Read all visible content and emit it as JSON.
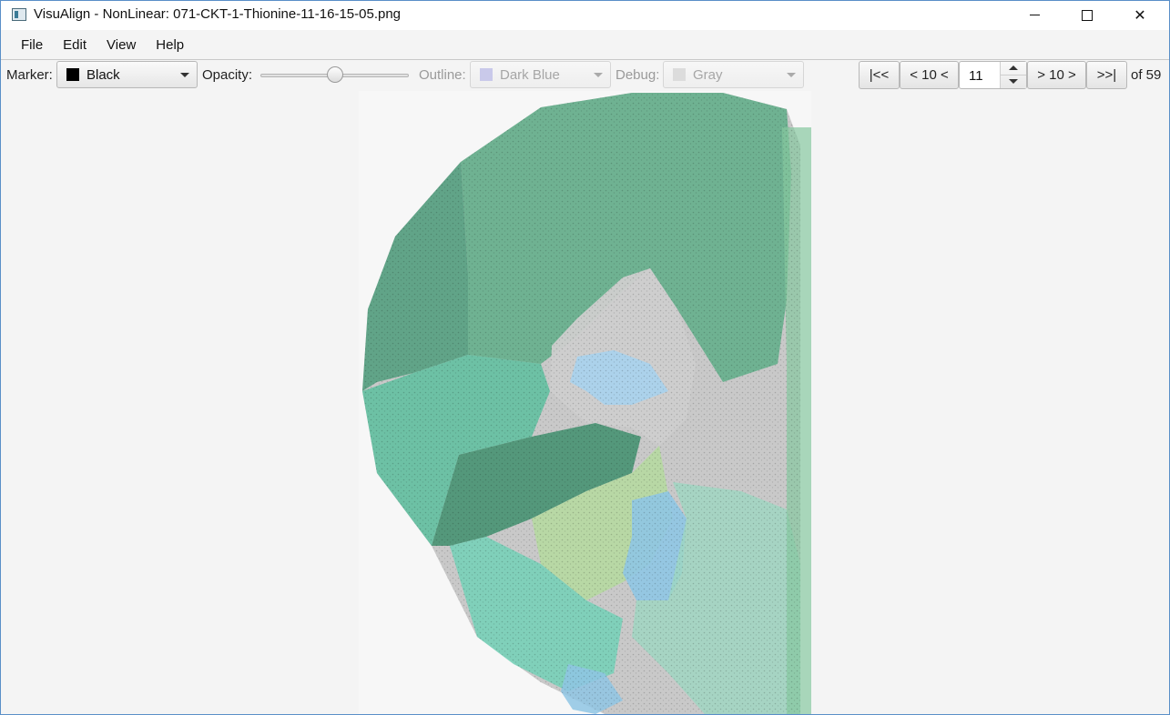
{
  "window": {
    "title": "VisuAlign - NonLinear: 071-CKT-1-Thionine-11-16-15-05.png",
    "minimize_glyph": "",
    "maximize_glyph": "",
    "close_glyph": "✕"
  },
  "menu": [
    "File",
    "Edit",
    "View",
    "Help"
  ],
  "toolbar": {
    "marker_label": "Marker:",
    "marker_value": "Black",
    "marker_color": "#000000",
    "opacity_label": "Opacity:",
    "opacity_value": 0.5,
    "outline_label": "Outline:",
    "outline_value": "Dark Blue",
    "outline_color": "#c9c9ea",
    "debug_label": "Debug:",
    "debug_value": "Gray",
    "debug_color": "#dcdcdc"
  },
  "navigation": {
    "first": "|<<",
    "back10": "< 10 <",
    "current": "11",
    "forward10": "> 10 >",
    "last": ">>|",
    "total": "of 59"
  },
  "colors": {
    "window_border": "#5a8fc8",
    "region_green": "#5fae88",
    "region_teal": "#73d1b7",
    "region_blue": "#8fc6e4",
    "region_lightgreen": "#b6d9a1"
  }
}
